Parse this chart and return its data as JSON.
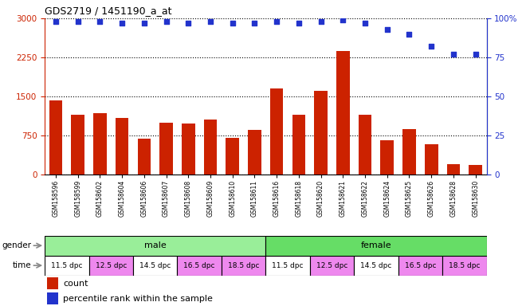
{
  "title": "GDS2719 / 1451190_a_at",
  "samples": [
    "GSM158596",
    "GSM158599",
    "GSM158602",
    "GSM158604",
    "GSM158606",
    "GSM158607",
    "GSM158608",
    "GSM158609",
    "GSM158610",
    "GSM158611",
    "GSM158616",
    "GSM158618",
    "GSM158620",
    "GSM158621",
    "GSM158622",
    "GSM158624",
    "GSM158625",
    "GSM158626",
    "GSM158628",
    "GSM158630"
  ],
  "counts": [
    1420,
    1150,
    1180,
    1090,
    680,
    1000,
    980,
    1060,
    700,
    850,
    1650,
    1150,
    1600,
    2370,
    1150,
    650,
    870,
    580,
    200,
    180
  ],
  "percentile_ranks": [
    98,
    98,
    98,
    97,
    97,
    98,
    97,
    98,
    97,
    97,
    98,
    97,
    98,
    99,
    97,
    93,
    90,
    82,
    77,
    77
  ],
  "bar_color": "#cc2200",
  "dot_color": "#2233cc",
  "left_ylim": [
    0,
    3000
  ],
  "left_yticks": [
    0,
    750,
    1500,
    2250,
    3000
  ],
  "right_ylim": [
    0,
    100
  ],
  "right_yticks": [
    0,
    25,
    50,
    75,
    100
  ],
  "right_yticklabels": [
    "0",
    "25",
    "50",
    "75",
    "100%"
  ],
  "gender_groups": [
    {
      "label": "male",
      "start": 0,
      "end": 10,
      "color": "#99ee99"
    },
    {
      "label": "female",
      "start": 10,
      "end": 20,
      "color": "#66dd66"
    }
  ],
  "time_groups": [
    {
      "label": "11.5 dpc",
      "start": 0,
      "end": 2,
      "color": "#ffffff"
    },
    {
      "label": "12.5 dpc",
      "start": 2,
      "end": 4,
      "color": "#ee88ee"
    },
    {
      "label": "14.5 dpc",
      "start": 4,
      "end": 6,
      "color": "#ffffff"
    },
    {
      "label": "16.5 dpc",
      "start": 6,
      "end": 8,
      "color": "#ee88ee"
    },
    {
      "label": "18.5 dpc",
      "start": 8,
      "end": 10,
      "color": "#ee88ee"
    },
    {
      "label": "11.5 dpc",
      "start": 10,
      "end": 12,
      "color": "#ffffff"
    },
    {
      "label": "12.5 dpc",
      "start": 12,
      "end": 14,
      "color": "#ee88ee"
    },
    {
      "label": "14.5 dpc",
      "start": 14,
      "end": 16,
      "color": "#ffffff"
    },
    {
      "label": "16.5 dpc",
      "start": 16,
      "end": 18,
      "color": "#ee88ee"
    },
    {
      "label": "18.5 dpc",
      "start": 18,
      "end": 20,
      "color": "#ee88ee"
    }
  ],
  "legend_count_color": "#cc2200",
  "legend_dot_color": "#2233cc",
  "background_color": "#ffffff",
  "left_axis_color": "#cc2200",
  "right_axis_color": "#2233cc",
  "figsize": [
    6.6,
    3.84
  ],
  "dpi": 100
}
